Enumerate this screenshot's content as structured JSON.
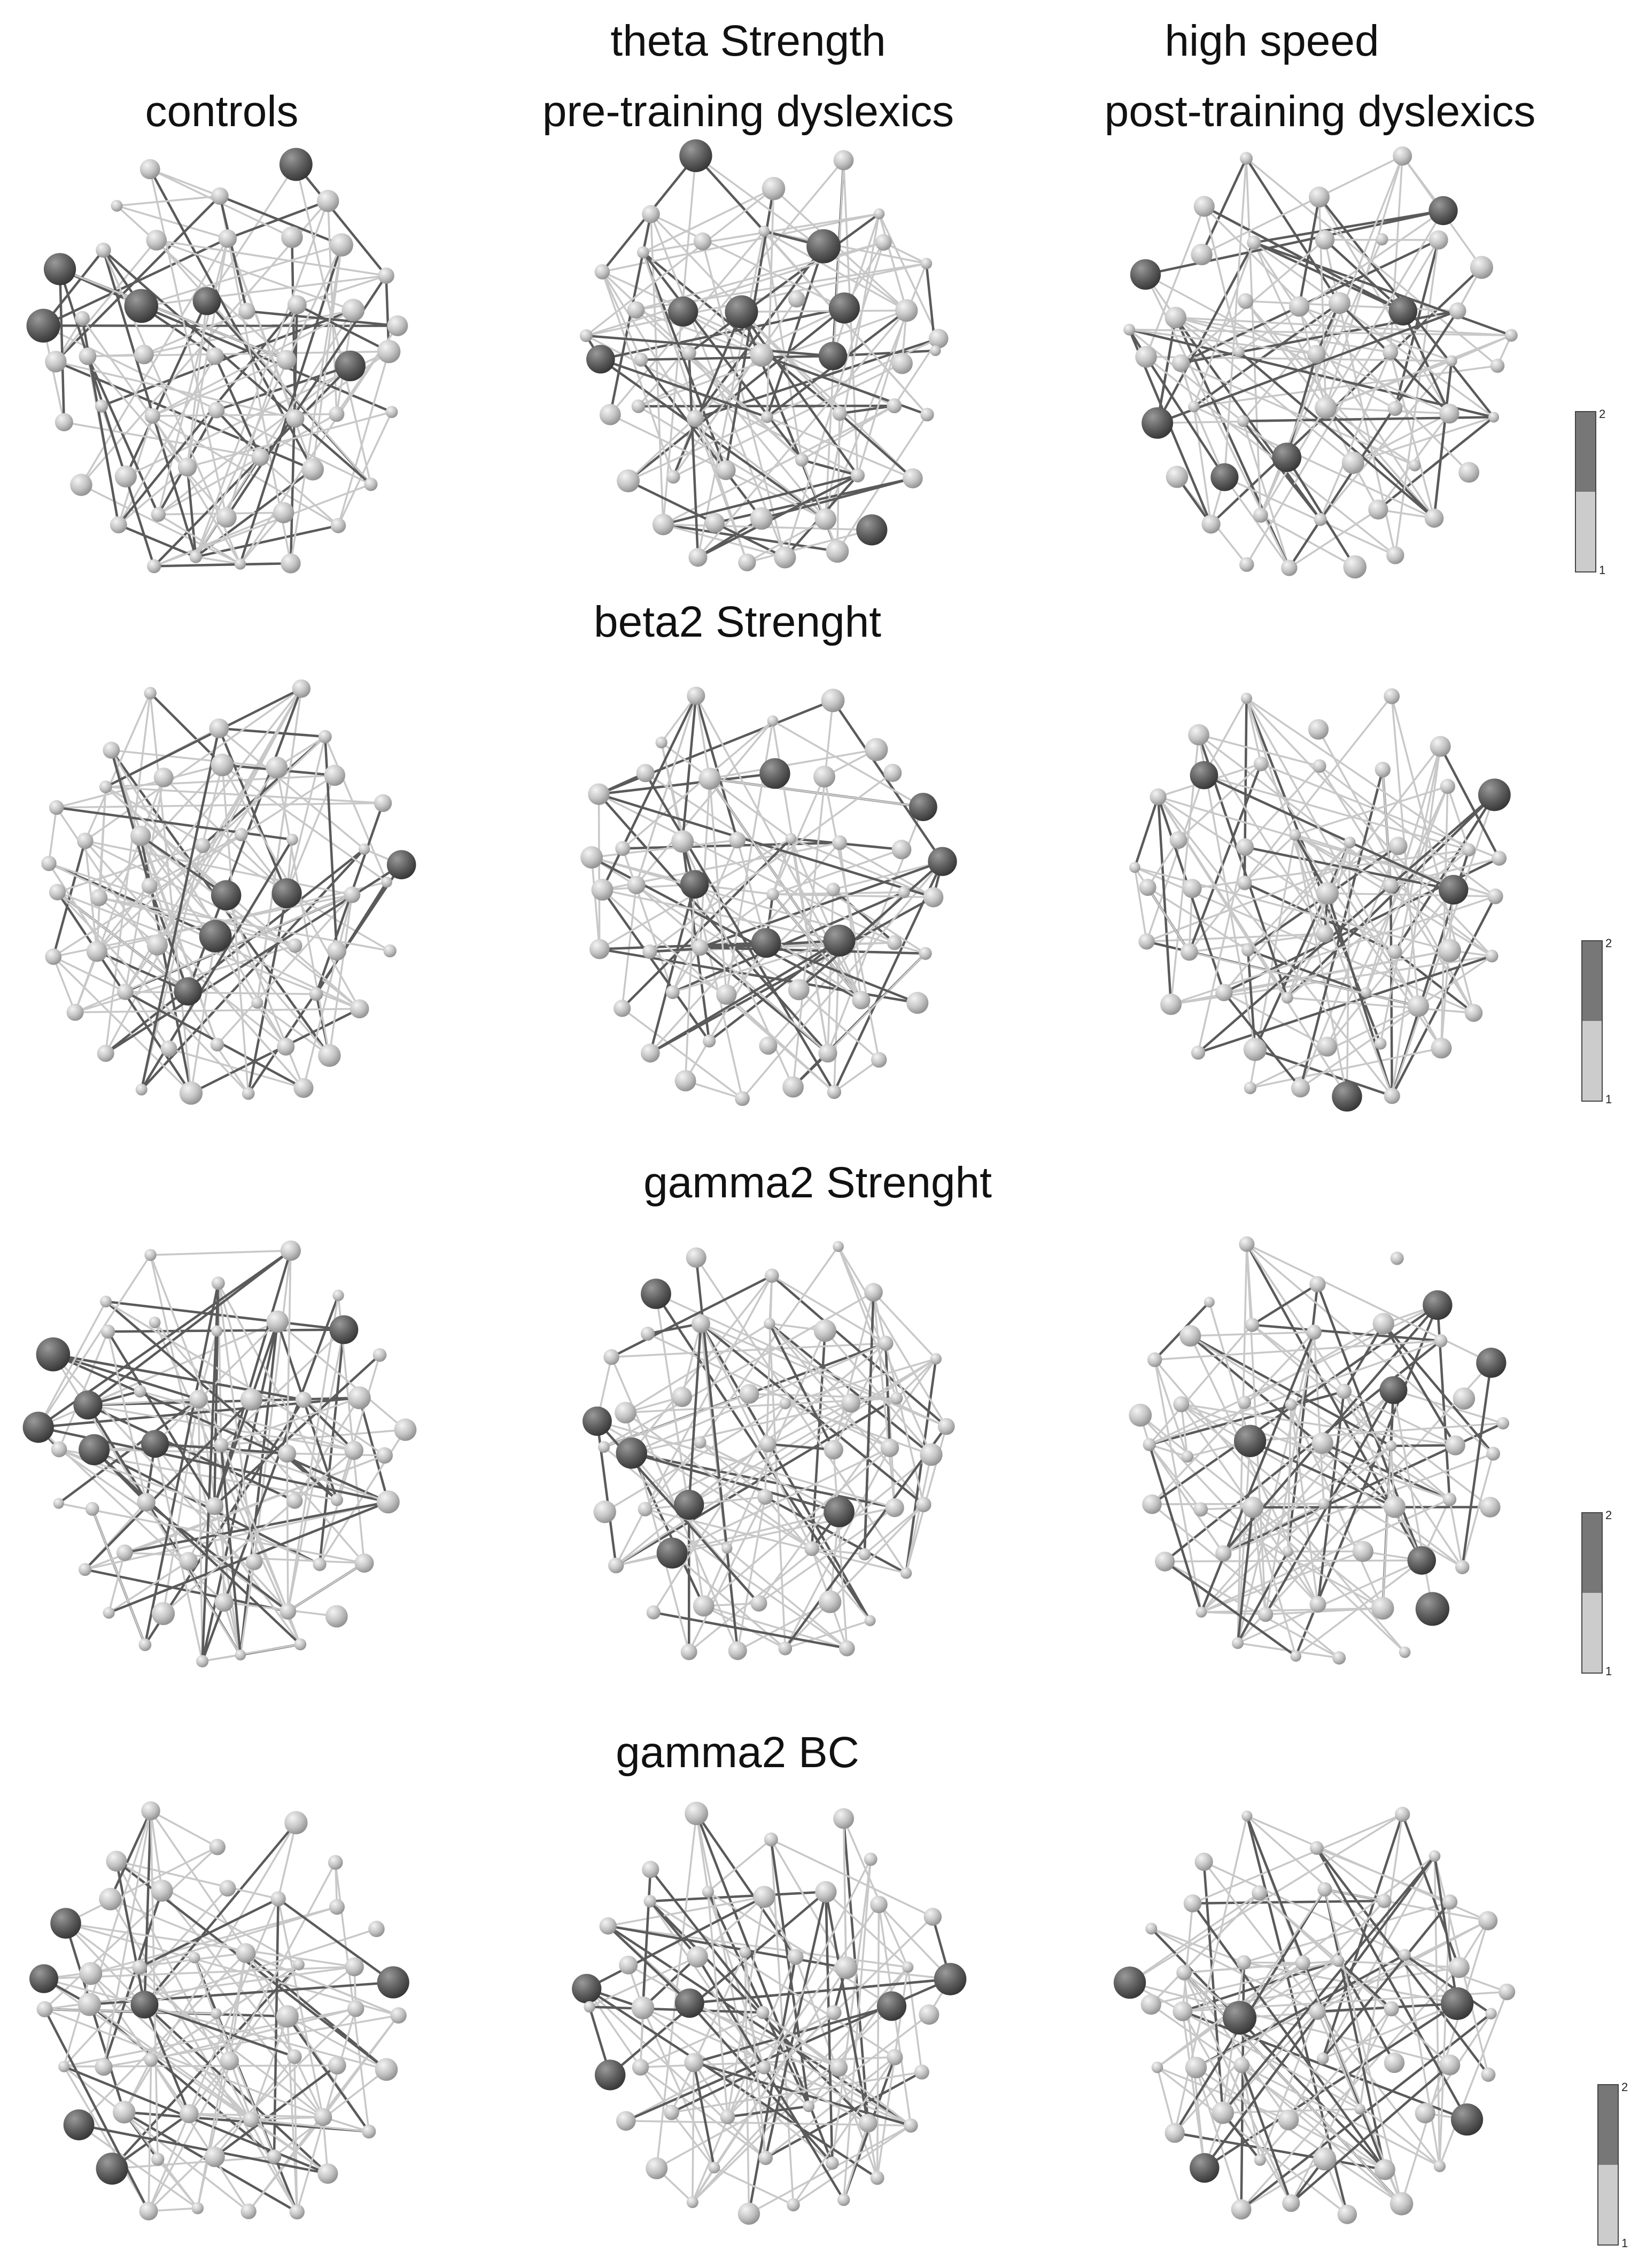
{
  "headers": {
    "col1": "controls",
    "col2_line1": "theta Strength",
    "col2_line2": "pre-training dyslexics",
    "col3_line1": "high speed",
    "col3_line2": "post-training dyslexics"
  },
  "row_titles": [
    "beta2 Strenght",
    "gamma2 Strenght",
    "gamma2 BC"
  ],
  "colorbar": {
    "max_label": "2",
    "min_label": "1",
    "dark_color": "#777777",
    "light_color": "#cccccc"
  },
  "colors": {
    "node_dark": "#555555",
    "node_light": "#bdbdbd",
    "edge_dark": "#5a5a5a",
    "edge_light": "#c8c8c8"
  }
}
